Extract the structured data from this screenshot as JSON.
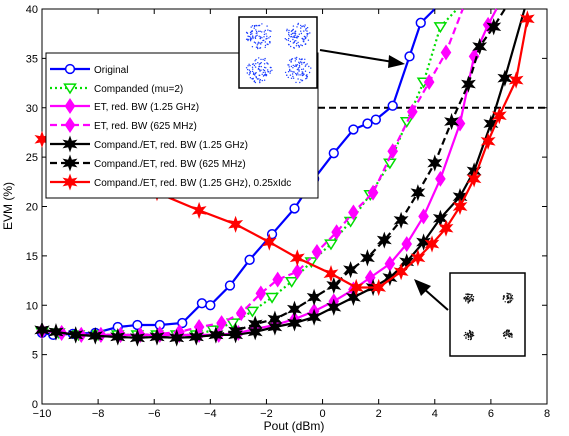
{
  "chart_data": {
    "type": "line",
    "title": "",
    "xlabel": "Pout (dBm)",
    "ylabel": "EVM (%)",
    "xlim": [
      -10,
      8
    ],
    "ylim": [
      0,
      40
    ],
    "xticks": [
      -10,
      -8,
      -6,
      -4,
      -2,
      0,
      2,
      4,
      6,
      8
    ],
    "yticks": [
      0,
      5,
      10,
      15,
      20,
      25,
      30,
      35,
      40
    ],
    "grid": false,
    "legend_position": "top-left",
    "threshold_line": 30,
    "series": [
      {
        "name": "Original",
        "color": "#0000ff",
        "dash": "solid",
        "marker": "circle",
        "x": [
          -10,
          -9.6,
          -8.9,
          -8.1,
          -7.3,
          -6.6,
          -5.8,
          -5.0,
          -4.3,
          -4.0,
          -3.3,
          -2.6,
          -1.8,
          -1.0,
          -0.3,
          0.4,
          1.1,
          1.6,
          1.9,
          2.5,
          3.1,
          3.5,
          4.0
        ],
        "y": [
          7.2,
          7.0,
          7.1,
          7.2,
          7.8,
          8.0,
          8.0,
          8.2,
          10.2,
          10.0,
          12.0,
          14.6,
          17.2,
          19.8,
          22.8,
          25.4,
          27.8,
          28.4,
          28.8,
          30.2,
          35.2,
          38.6,
          40.0
        ]
      },
      {
        "name": "Companded (mu=2)",
        "color": "#00dd00",
        "dash": "dotted",
        "marker": "triangle-down",
        "x": [
          -10,
          -9.4,
          -8.7,
          -8.0,
          -7.3,
          -6.6,
          -5.9,
          -5.2,
          -4.5,
          -3.9,
          -3.2,
          -2.5,
          -1.8,
          -1.1,
          -0.4,
          0.3,
          1.0,
          1.7,
          2.4,
          3.0,
          3.6,
          4.2,
          4.8
        ],
        "y": [
          7.3,
          7.2,
          7.0,
          7.0,
          7.0,
          7.0,
          7.0,
          7.0,
          7.0,
          7.5,
          8.2,
          9.4,
          10.8,
          12.4,
          14.4,
          16.2,
          18.5,
          21.2,
          24.4,
          28.6,
          32.6,
          38.2,
          40.0
        ]
      },
      {
        "name": "ET, red. BW (1.25 GHz)",
        "color": "#ff00ff",
        "dash": "solid",
        "marker": "diamond",
        "x": [
          -10,
          -9.3,
          -8.6,
          -7.9,
          -7.2,
          -6.5,
          -5.8,
          -5.1,
          -4.4,
          -3.7,
          -3.0,
          -2.4,
          -1.7,
          -1.0,
          -0.3,
          0.4,
          1.1,
          1.7,
          2.4,
          3.0,
          3.6,
          4.2,
          4.9,
          5.4,
          5.9,
          6.2
        ],
        "y": [
          7.4,
          7.2,
          7.0,
          7.0,
          7.0,
          7.0,
          7.0,
          7.0,
          7.0,
          7.0,
          7.2,
          7.6,
          8.0,
          8.6,
          9.4,
          10.4,
          11.6,
          12.8,
          14.2,
          16.2,
          19.0,
          22.8,
          28.4,
          35.2,
          38.4,
          40.0
        ]
      },
      {
        "name": "ET, red. BW (625 MHz)",
        "color": "#ff00ff",
        "dash": "dashed",
        "marker": "diamond",
        "x": [
          -10,
          -9.3,
          -8.6,
          -7.9,
          -7.2,
          -6.5,
          -5.8,
          -5.1,
          -4.4,
          -3.6,
          -2.9,
          -2.2,
          -1.6,
          -0.9,
          -0.2,
          0.5,
          1.1,
          1.8,
          2.5,
          3.2,
          3.8,
          4.4,
          5.0
        ],
        "y": [
          7.4,
          7.2,
          7.0,
          7.0,
          7.0,
          7.0,
          7.1,
          7.3,
          7.8,
          8.2,
          9.2,
          11.2,
          12.6,
          13.4,
          15.4,
          17.4,
          19.4,
          21.4,
          25.6,
          29.6,
          32.6,
          35.6,
          40.0
        ]
      },
      {
        "name": "Compand./ET, red. BW (1.25 GHz)",
        "color": "#000000",
        "dash": "solid",
        "marker": "star",
        "x": [
          -10,
          -9.5,
          -8.8,
          -8.1,
          -7.3,
          -6.6,
          -5.9,
          -5.2,
          -4.5,
          -3.8,
          -3.1,
          -2.4,
          -1.7,
          -1.0,
          -0.3,
          0.4,
          1.1,
          1.8,
          2.4,
          3.0,
          3.6,
          4.2,
          4.9,
          5.4,
          6.0,
          6.5,
          7.2
        ],
        "y": [
          7.5,
          7.3,
          7.0,
          6.9,
          6.8,
          6.7,
          6.8,
          6.7,
          6.8,
          7.0,
          7.0,
          7.3,
          7.8,
          8.2,
          8.8,
          9.8,
          10.8,
          11.8,
          12.8,
          14.4,
          16.4,
          18.8,
          21.0,
          23.6,
          28.4,
          33.0,
          40.0
        ]
      },
      {
        "name": "Compand./ET, red. BW (625 MHz)",
        "color": "#000000",
        "dash": "dashed",
        "marker": "star",
        "x": [
          -10,
          -9.5,
          -8.8,
          -8.1,
          -7.3,
          -6.6,
          -5.9,
          -5.2,
          -4.5,
          -3.8,
          -3.1,
          -2.4,
          -1.7,
          -1.0,
          -0.3,
          0.4,
          1.0,
          1.6,
          2.2,
          2.8,
          3.4,
          4.0,
          4.6,
          5.2,
          5.6,
          6.1,
          6.5
        ],
        "y": [
          7.5,
          7.3,
          7.0,
          6.9,
          6.8,
          6.7,
          6.8,
          6.7,
          6.8,
          7.0,
          7.4,
          8.1,
          8.6,
          9.6,
          10.8,
          12.0,
          13.6,
          14.8,
          16.6,
          18.6,
          21.4,
          24.4,
          28.6,
          32.4,
          36.2,
          38.2,
          40.0
        ]
      },
      {
        "name": "Compand./ET, red. BW (1.25 GHz), 0.25xIdc",
        "color": "#ff0000",
        "dash": "solid",
        "marker": "star",
        "x": [
          -10,
          -9.5,
          -8.2,
          -7.1,
          -5.9,
          -4.4,
          -3.1,
          -1.9,
          -0.9,
          0.3,
          1.2,
          2.0,
          2.8,
          3.4,
          3.9,
          4.4,
          4.9,
          5.4,
          5.9,
          6.3,
          6.9,
          7.3
        ],
        "y": [
          26.8,
          26.4,
          24.6,
          23.0,
          21.4,
          19.6,
          18.2,
          16.4,
          14.8,
          13.2,
          11.8,
          11.8,
          13.4,
          14.8,
          16.2,
          17.8,
          20.0,
          22.8,
          26.6,
          29.2,
          32.8,
          39.0
        ]
      }
    ]
  },
  "legend": {
    "entries": [
      "Original",
      "Companded (mu=2)",
      "ET, red. BW (1.25 GHz)",
      "ET, red. BW (625 MHz)",
      "Compand./ET, red. BW (1.25 GHz)",
      "Compand./ET, red. BW (625 MHz)",
      "Compand./ET, red. BW (1.25 GHz), 0.25xIdc"
    ]
  },
  "insets": [
    {
      "name": "constellation-inset-top",
      "description_icon": "scatter-constellation-icon"
    },
    {
      "name": "constellation-inset-bottom",
      "description_icon": "scatter-constellation-icon"
    }
  ]
}
